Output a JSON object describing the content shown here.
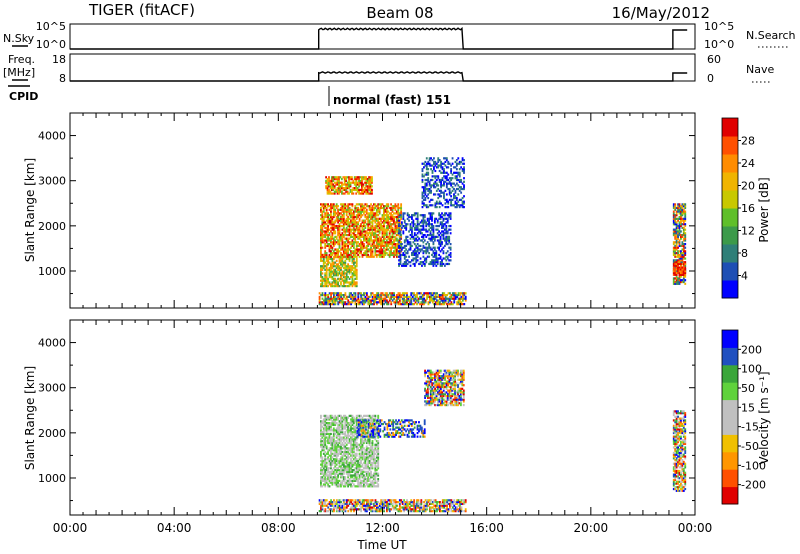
{
  "header": {
    "radar": "TIGER (fitACF)",
    "beam": "Beam 08",
    "date": "16/May/2012"
  },
  "top_panels": {
    "nsky": {
      "left_label": "N.Sky",
      "right_label": "N.Search",
      "left_ticks": [
        "10^5",
        "10^0"
      ],
      "right_ticks": [
        "10^5",
        "10^0"
      ]
    },
    "freq": {
      "left_label_1": "Freq.",
      "left_label_2": "[MHz]",
      "right_label": "Nave",
      "left_ticks": [
        "18",
        "8"
      ],
      "right_ticks": [
        "60",
        "0"
      ]
    },
    "cpid": {
      "label": "CPID",
      "mode_text": "normal (fast) 151"
    }
  },
  "chart_data": [
    {
      "type": "heatmap",
      "name": "power",
      "ylabel": "Slant Range [km]",
      "xlabel": "",
      "ylim": [
        180,
        4500
      ],
      "yticks": [
        1000,
        2000,
        3000,
        4000
      ],
      "xlim": [
        0,
        24
      ],
      "colorbar": {
        "label": "Power [dB]",
        "ticks": [
          "28",
          "24",
          "20",
          "16",
          "12",
          "8",
          "4"
        ],
        "colors": [
          "#0000ff",
          "#1e4fb4",
          "#2f7f78",
          "#3c9a4a",
          "#5fbf2a",
          "#c8c800",
          "#f0b400",
          "#ff8c00",
          "#ff5000",
          "#e00000"
        ]
      },
      "regions": [
        {
          "t0": 9.55,
          "t1": 15.2,
          "r0": 250,
          "r1": 500,
          "level": "low"
        },
        {
          "t0": 9.6,
          "t1": 11.0,
          "r0": 650,
          "r1": 1300,
          "level": "mid"
        },
        {
          "t0": 9.6,
          "t1": 12.7,
          "r0": 1300,
          "r1": 2500,
          "level": "high"
        },
        {
          "t0": 9.8,
          "t1": 11.6,
          "r0": 2700,
          "r1": 3100,
          "level": "high"
        },
        {
          "t0": 12.6,
          "t1": 14.6,
          "r0": 1100,
          "r1": 2300,
          "level": "blue"
        },
        {
          "t0": 13.5,
          "t1": 15.1,
          "r0": 2400,
          "r1": 3500,
          "level": "blue"
        },
        {
          "t0": 23.15,
          "t1": 23.6,
          "r0": 700,
          "r1": 2500,
          "level": "mixed"
        },
        {
          "t0": 23.15,
          "t1": 23.6,
          "r0": 900,
          "r1": 1200,
          "level": "max"
        }
      ]
    },
    {
      "type": "heatmap",
      "name": "velocity",
      "ylabel": "Slant Range [km]",
      "xlabel": "Time UT",
      "ylim": [
        180,
        4500
      ],
      "yticks": [
        1000,
        2000,
        3000,
        4000
      ],
      "xlim": [
        0,
        24
      ],
      "xticklabels": [
        "00:00",
        "04:00",
        "08:00",
        "12:00",
        "16:00",
        "20:00",
        "00:00"
      ],
      "colorbar": {
        "label": "Velocity [m s⁻¹]",
        "ticks": [
          "200",
          "100",
          "50",
          "15",
          "-15",
          "-50",
          "-100",
          "-200"
        ],
        "colors": [
          "#e00000",
          "#ff5000",
          "#ff9600",
          "#f0c000",
          "#c0c0c0",
          "#c0c0c0",
          "#5fd23c",
          "#3aa63a",
          "#2050c0",
          "#0000ff"
        ]
      },
      "regions": [
        {
          "t0": 9.55,
          "t1": 15.2,
          "r0": 250,
          "r1": 500,
          "level": "mixed"
        },
        {
          "t0": 9.6,
          "t1": 11.8,
          "r0": 800,
          "r1": 2400,
          "level": "green-gray"
        },
        {
          "t0": 11.0,
          "t1": 13.6,
          "r0": 1900,
          "r1": 2300,
          "level": "blue"
        },
        {
          "t0": 13.6,
          "t1": 15.1,
          "r0": 2600,
          "r1": 3400,
          "level": "mixed"
        },
        {
          "t0": 23.15,
          "t1": 23.6,
          "r0": 700,
          "r1": 2500,
          "level": "mixed"
        }
      ]
    }
  ]
}
